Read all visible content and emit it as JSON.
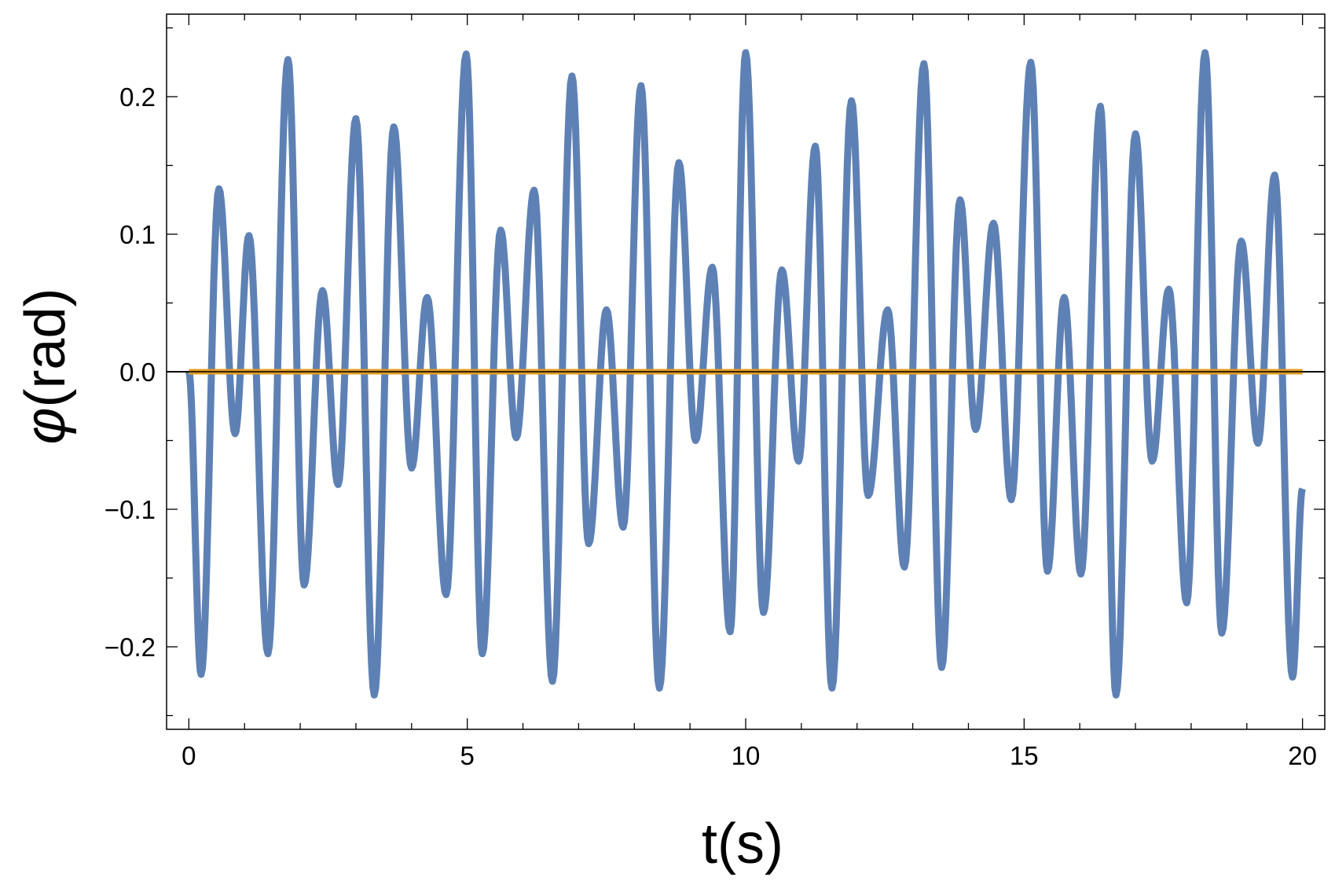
{
  "chart_data": {
    "type": "line",
    "title": "",
    "xlabel": "t(s)",
    "ylabel_symbol": "φ",
    "ylabel_unit": "(rad)",
    "xlim": [
      -0.4,
      20.4
    ],
    "ylim": [
      -0.26,
      0.26
    ],
    "x_ticks": [
      {
        "value": 0,
        "label": "0"
      },
      {
        "value": 5,
        "label": "5"
      },
      {
        "value": 10,
        "label": "10"
      },
      {
        "value": 15,
        "label": "15"
      },
      {
        "value": 20,
        "label": "20"
      }
    ],
    "y_ticks": [
      {
        "value": 0.2,
        "label": "0.2"
      },
      {
        "value": 0.1,
        "label": "0.1"
      },
      {
        "value": 0.0,
        "label": "0.0"
      },
      {
        "value": -0.1,
        "label": "−0.1"
      },
      {
        "value": -0.2,
        "label": "−0.2"
      }
    ],
    "grid": false,
    "frame": true,
    "series": [
      {
        "color": "#5e81b5",
        "x": [
          0.0,
          0.22,
          0.54,
          0.83,
          1.08,
          1.42,
          1.78,
          2.07,
          2.4,
          2.68,
          3.0,
          3.33,
          3.68,
          4.0,
          4.28,
          4.62,
          4.98,
          5.27,
          5.6,
          5.88,
          6.2,
          6.53,
          6.88,
          7.18,
          7.5,
          7.8,
          8.12,
          8.45,
          8.8,
          9.1,
          9.4,
          9.72,
          10.0,
          10.32,
          10.65,
          10.95,
          11.25,
          11.55,
          11.9,
          12.2,
          12.55,
          12.85,
          13.2,
          13.52,
          13.85,
          14.13,
          14.45,
          14.77,
          15.12,
          15.42,
          15.72,
          16.02,
          16.37,
          16.65,
          17.0,
          17.3,
          17.6,
          17.92,
          18.25,
          18.55,
          18.9,
          19.2,
          19.5,
          19.82,
          20.0
        ],
        "y": [
          0.0,
          -0.22,
          0.133,
          -0.045,
          0.099,
          -0.205,
          0.227,
          -0.155,
          0.059,
          -0.082,
          0.184,
          -0.235,
          0.178,
          -0.07,
          0.054,
          -0.162,
          0.231,
          -0.205,
          0.103,
          -0.048,
          0.132,
          -0.225,
          0.215,
          -0.125,
          0.045,
          -0.113,
          0.208,
          -0.23,
          0.152,
          -0.05,
          0.076,
          -0.189,
          0.232,
          -0.175,
          0.074,
          -0.065,
          0.164,
          -0.23,
          0.197,
          -0.09,
          0.045,
          -0.142,
          0.224,
          -0.215,
          0.125,
          -0.042,
          0.108,
          -0.093,
          0.225,
          -0.145,
          0.054,
          -0.147,
          0.193,
          -0.235,
          0.173,
          -0.065,
          0.06,
          -0.168,
          0.232,
          -0.19,
          0.095,
          -0.052,
          0.143,
          -0.222,
          -0.085
        ]
      },
      {
        "color": "#e19c24",
        "x": [
          0,
          20
        ],
        "y": [
          0.0,
          0.0
        ]
      }
    ]
  }
}
